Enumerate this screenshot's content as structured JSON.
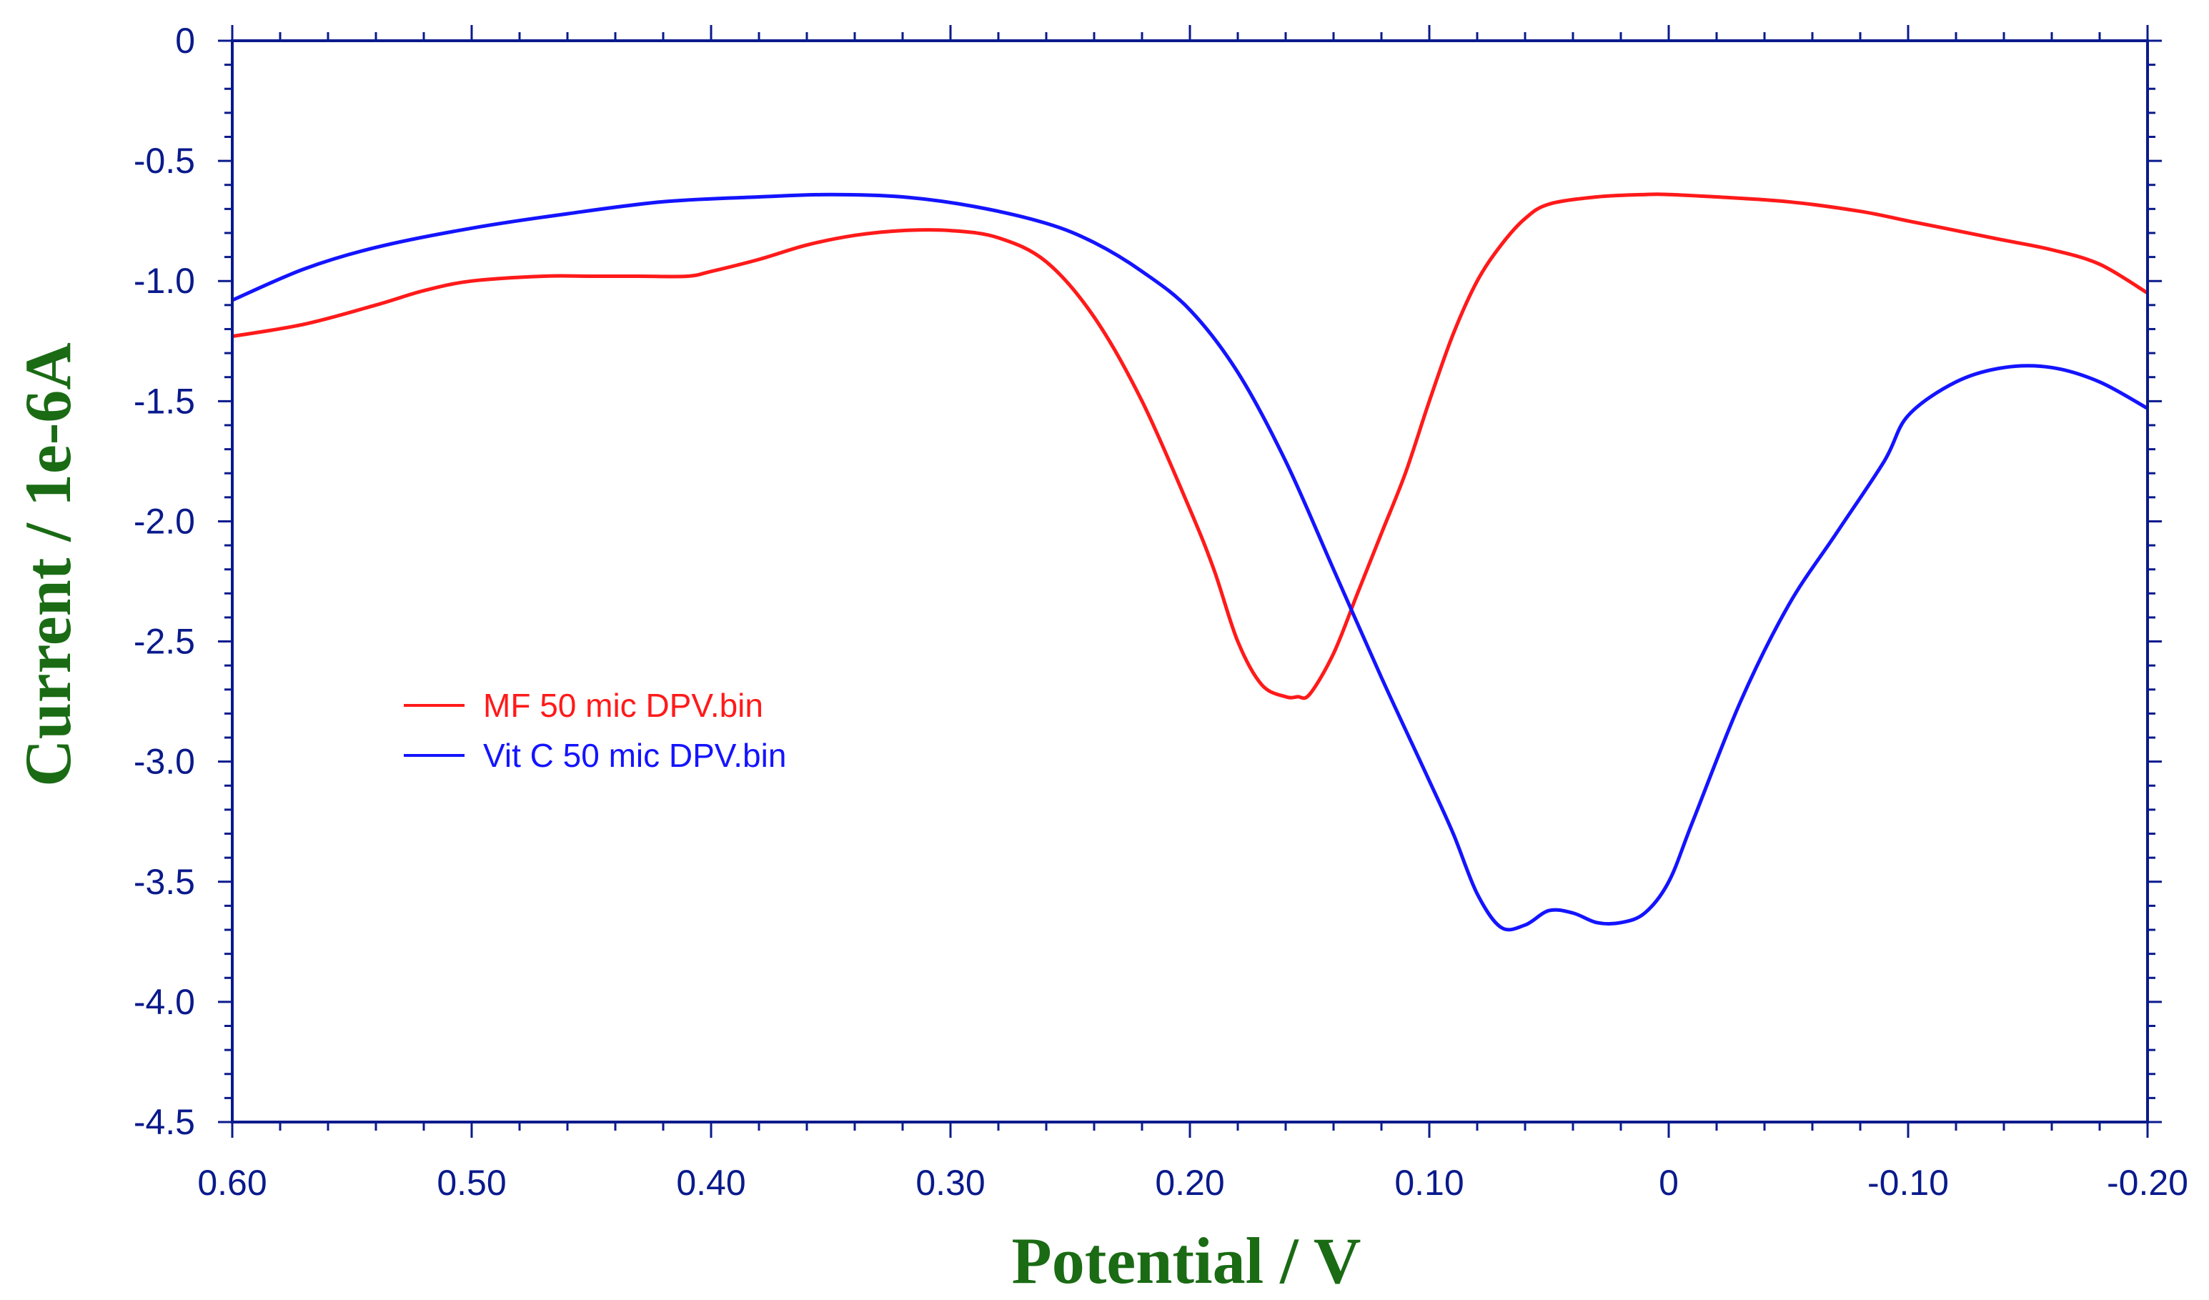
{
  "chart_data": {
    "type": "line",
    "title": "",
    "xlabel": "Potential / V",
    "ylabel": "Current / 1e-6A",
    "xlim": [
      0.6,
      -0.2
    ],
    "ylim": [
      -4.5,
      0
    ],
    "x_reversed": true,
    "x_ticks": [
      0.6,
      0.5,
      0.4,
      0.3,
      0.2,
      0.1,
      0,
      -0.1,
      -0.2
    ],
    "x_tick_labels": [
      "0.60",
      "0.50",
      "0.40",
      "0.30",
      "0.20",
      "0.10",
      "0",
      "-0.10",
      "-0.20"
    ],
    "y_ticks": [
      0,
      -0.5,
      -1.0,
      -1.5,
      -2.0,
      -2.5,
      -3.0,
      -3.5,
      -4.0,
      -4.5
    ],
    "y_tick_labels": [
      "0",
      "-0.5",
      "-1.0",
      "-1.5",
      "-2.0",
      "-2.5",
      "-3.0",
      "-3.5",
      "-4.0",
      "-4.5"
    ],
    "grid": false,
    "legend_position": "middle-left",
    "series": [
      {
        "name": "MF 50 mic DPV.bin",
        "color": "#ff1a1a",
        "x": [
          0.6,
          0.57,
          0.54,
          0.52,
          0.5,
          0.47,
          0.45,
          0.43,
          0.41,
          0.4,
          0.38,
          0.36,
          0.34,
          0.32,
          0.3,
          0.28,
          0.26,
          0.24,
          0.22,
          0.2,
          0.19,
          0.18,
          0.17,
          0.16,
          0.155,
          0.15,
          0.14,
          0.13,
          0.12,
          0.11,
          0.1,
          0.09,
          0.08,
          0.07,
          0.06,
          0.05,
          0.03,
          0.01,
          0.0,
          -0.02,
          -0.05,
          -0.08,
          -0.1,
          -0.12,
          -0.14,
          -0.16,
          -0.18,
          -0.2
        ],
        "y": [
          -1.23,
          -1.18,
          -1.1,
          -1.04,
          -1.0,
          -0.98,
          -0.98,
          -0.98,
          -0.98,
          -0.96,
          -0.91,
          -0.85,
          -0.81,
          -0.79,
          -0.79,
          -0.82,
          -0.92,
          -1.15,
          -1.5,
          -1.95,
          -2.2,
          -2.5,
          -2.68,
          -2.73,
          -2.73,
          -2.72,
          -2.55,
          -2.3,
          -2.05,
          -1.8,
          -1.5,
          -1.22,
          -1.0,
          -0.85,
          -0.74,
          -0.68,
          -0.65,
          -0.64,
          -0.64,
          -0.65,
          -0.67,
          -0.71,
          -0.75,
          -0.79,
          -0.83,
          -0.87,
          -0.93,
          -1.05
        ]
      },
      {
        "name": "Vit C 50 mic DPV.bin",
        "color": "#1414ff",
        "x": [
          0.6,
          0.57,
          0.54,
          0.5,
          0.46,
          0.42,
          0.38,
          0.35,
          0.32,
          0.29,
          0.26,
          0.24,
          0.22,
          0.2,
          0.18,
          0.16,
          0.14,
          0.12,
          0.1,
          0.09,
          0.08,
          0.07,
          0.06,
          0.05,
          0.04,
          0.03,
          0.02,
          0.01,
          0.0,
          -0.01,
          -0.03,
          -0.05,
          -0.07,
          -0.09,
          -0.1,
          -0.12,
          -0.14,
          -0.16,
          -0.18,
          -0.2
        ],
        "y": [
          -1.08,
          -0.95,
          -0.86,
          -0.78,
          -0.72,
          -0.67,
          -0.65,
          -0.64,
          -0.65,
          -0.69,
          -0.76,
          -0.84,
          -0.96,
          -1.12,
          -1.38,
          -1.75,
          -2.2,
          -2.65,
          -3.08,
          -3.3,
          -3.55,
          -3.69,
          -3.68,
          -3.62,
          -3.63,
          -3.67,
          -3.67,
          -3.63,
          -3.5,
          -3.25,
          -2.75,
          -2.35,
          -2.05,
          -1.75,
          -1.56,
          -1.42,
          -1.36,
          -1.36,
          -1.42,
          -1.53
        ]
      }
    ]
  }
}
